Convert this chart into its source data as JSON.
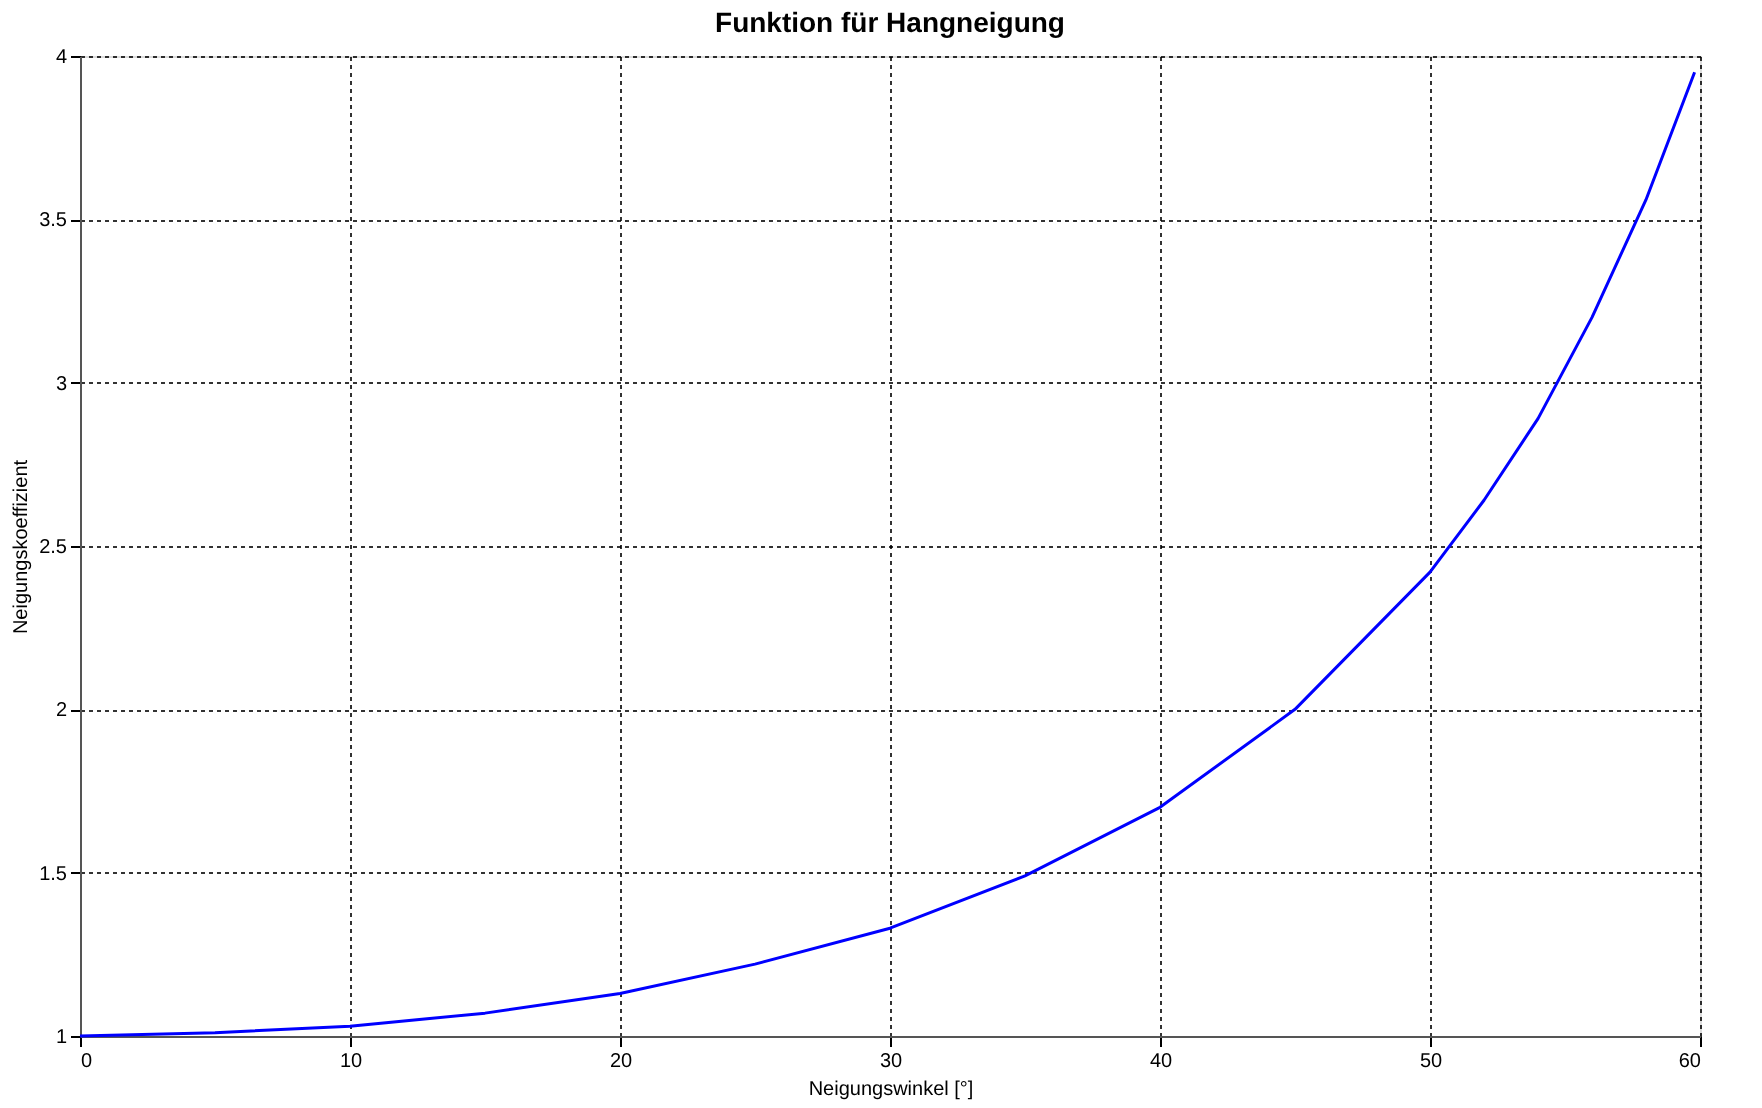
{
  "chart_data": {
    "type": "line",
    "title": "Funktion für Hangneigung",
    "xlabel": "Neigungswinkel [°]",
    "ylabel": "Neigungskoeffizient",
    "x": [
      0,
      5,
      10,
      15,
      20,
      25,
      30,
      35,
      40,
      45,
      50,
      52,
      54,
      56,
      58,
      59.8
    ],
    "series": [
      {
        "color": "#0000ff",
        "values": [
          1.0,
          1.01,
          1.03,
          1.07,
          1.13,
          1.22,
          1.33,
          1.49,
          1.7,
          2.0,
          2.42,
          2.64,
          2.89,
          3.2,
          3.56,
          3.95
        ]
      }
    ],
    "xlim": [
      0,
      60
    ],
    "xticks": [
      0,
      10,
      20,
      30,
      40,
      50,
      60
    ],
    "ylim": [
      1,
      4
    ],
    "yticks": [
      1,
      1.5,
      2,
      2.5,
      3,
      3.5,
      4
    ],
    "grid": true,
    "line_style": "solid",
    "marker": "none"
  }
}
